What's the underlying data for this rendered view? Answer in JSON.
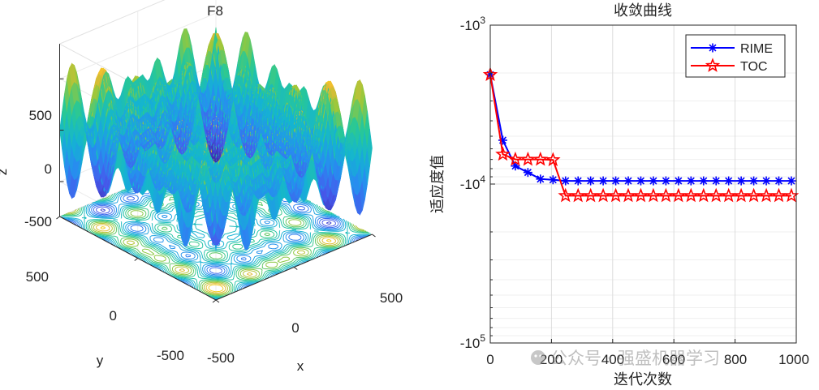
{
  "chart_data": [
    {
      "type": "surface3d",
      "title": "F8",
      "xlabel": "x",
      "ylabel": "y",
      "zlabel": "z",
      "x_ticks": [
        "-500",
        "0",
        "500"
      ],
      "y_ticks": [
        "-500",
        "0",
        "500"
      ],
      "z_ticks": [
        "-500",
        "0",
        "500"
      ],
      "xlim": [
        -500,
        500
      ],
      "ylim": [
        -500,
        500
      ],
      "zlim": [
        -840,
        840
      ],
      "function": "z = -x*sin(sqrt(|x|)) - y*sin(sqrt(|y|))",
      "contour_below": true,
      "colormap": "parula"
    },
    {
      "type": "line",
      "title": "收敛曲线",
      "xlabel": "迭代次数",
      "ylabel": "适应度值",
      "yscale": "log-negative",
      "x_ticks": [
        "0",
        "200",
        "400",
        "600",
        "800",
        "1000"
      ],
      "y_ticks": [
        "-10^3",
        "-10^4",
        "-10^5"
      ],
      "xlim": [
        0,
        1000
      ],
      "ylim_magnitude": [
        1000,
        100000
      ],
      "grid": true,
      "legend_position": "top-right",
      "x": [
        0,
        41,
        82,
        123,
        164,
        205,
        246,
        287,
        328,
        369,
        410,
        451,
        492,
        533,
        574,
        615,
        656,
        697,
        738,
        779,
        820,
        861,
        902,
        943,
        984
      ],
      "series": [
        {
          "name": "RIME",
          "color": "#0000ff",
          "marker": "asterisk",
          "values": [
            -2050,
            -5300,
            -7700,
            -8450,
            -9300,
            -9400,
            -9550,
            -9550,
            -9550,
            -9550,
            -9550,
            -9550,
            -9550,
            -9550,
            -9550,
            -9550,
            -9550,
            -9550,
            -9550,
            -9550,
            -9550,
            -9550,
            -9550,
            -9550,
            -9550
          ]
        },
        {
          "name": "TOC",
          "color": "#ff0000",
          "marker": "pentagram",
          "values": [
            -2050,
            -6500,
            -7000,
            -7000,
            -7000,
            -7050,
            -11850,
            -11850,
            -11850,
            -11850,
            -11850,
            -11850,
            -11850,
            -11850,
            -11850,
            -11850,
            -11850,
            -11850,
            -11850,
            -11850,
            -11850,
            -11850,
            -11850,
            -11850,
            -11850
          ]
        }
      ]
    }
  ],
  "exponents": {
    "e3": "3",
    "e4": "4",
    "e5": "5"
  },
  "watermark": "公众号 · 强盛机器学习"
}
